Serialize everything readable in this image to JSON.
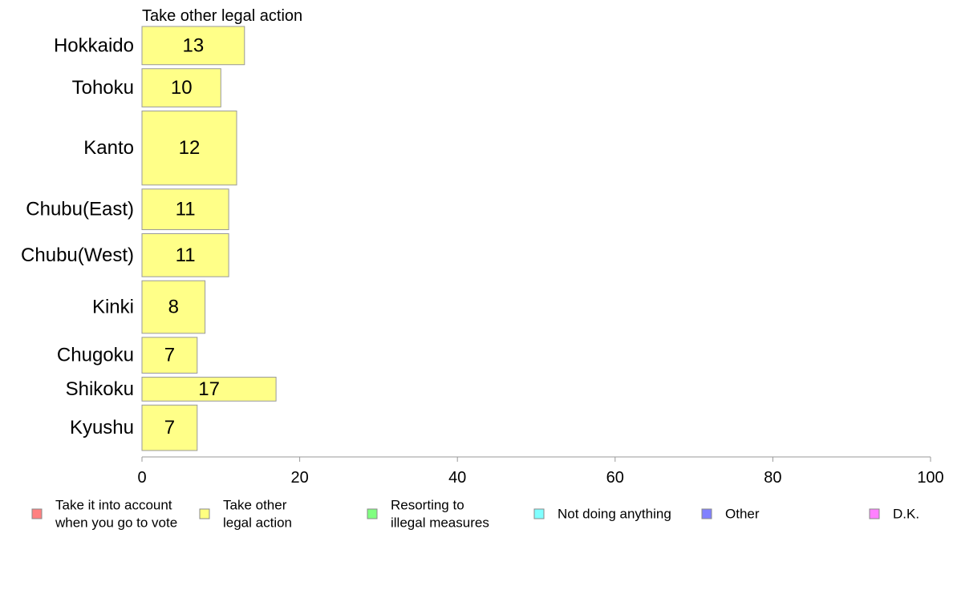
{
  "chart_data": {
    "type": "bar",
    "orientation": "horizontal",
    "title": "Take other legal action",
    "categories": [
      "Hokkaido",
      "Tohoku",
      "Kanto",
      "Chubu(East)",
      "Chubu(West)",
      "Kinki",
      "Chugoku",
      "Shikoku",
      "Kyushu"
    ],
    "values": [
      13,
      10,
      12,
      11,
      11,
      8,
      7,
      17,
      7
    ],
    "category_weights": [
      0.8,
      0.8,
      1.55,
      0.85,
      0.9,
      1.1,
      0.75,
      0.5,
      0.95
    ],
    "series_color": "#ffff88",
    "xlim": [
      0,
      100
    ],
    "xticks": [
      0,
      20,
      40,
      60,
      80,
      100
    ],
    "xlabel": "",
    "ylabel": "",
    "grid": false,
    "legend_position": "bottom",
    "legend": [
      {
        "lines": [
          "Take it into account",
          "when you go to vote"
        ],
        "color": "#ff8080"
      },
      {
        "lines": [
          "Take other",
          "legal action"
        ],
        "color": "#ffff80"
      },
      {
        "lines": [
          "Resorting to",
          "illegal measures"
        ],
        "color": "#80ff80"
      },
      {
        "lines": [
          "Not doing anything"
        ],
        "color": "#80ffff"
      },
      {
        "lines": [
          "Other"
        ],
        "color": "#8080ff"
      },
      {
        "lines": [
          "D.K."
        ],
        "color": "#ff80ff"
      }
    ]
  }
}
